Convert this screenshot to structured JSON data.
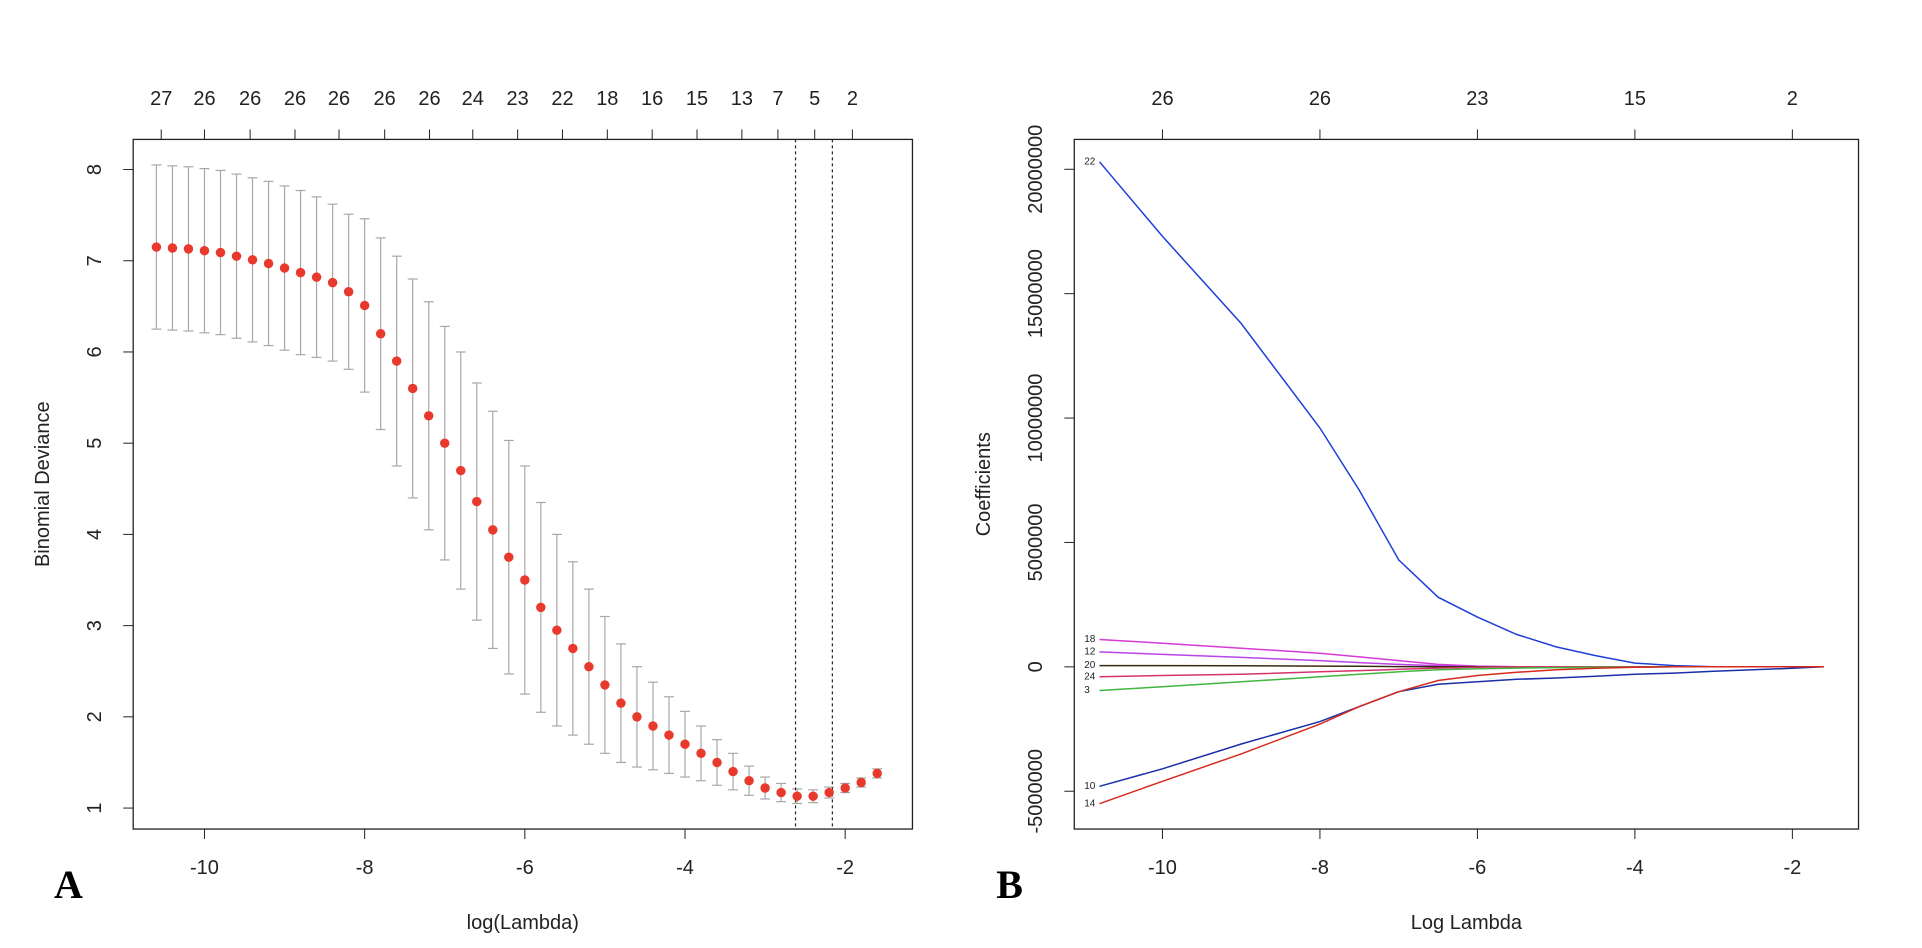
{
  "chart_data": [
    {
      "type": "errorbar",
      "panel_label": "A",
      "x_label": "log(Lambda)",
      "y_label": "Binomial Deviance",
      "x": [
        -10.6,
        -10.4,
        -10.2,
        -10.0,
        -9.8,
        -9.6,
        -9.4,
        -9.2,
        -9.0,
        -8.8,
        -8.6,
        -8.4,
        -8.2,
        -8.0,
        -7.8,
        -7.6,
        -7.4,
        -7.2,
        -7.0,
        -6.8,
        -6.6,
        -6.4,
        -6.2,
        -6.0,
        -5.8,
        -5.6,
        -5.4,
        -5.2,
        -5.0,
        -4.8,
        -4.6,
        -4.4,
        -4.2,
        -4.0,
        -3.8,
        -3.6,
        -3.4,
        -3.2,
        -3.0,
        -2.8,
        -2.6,
        -2.4,
        -2.2,
        -2.0,
        -1.8,
        -1.6
      ],
      "values": [
        7.15,
        7.14,
        7.13,
        7.11,
        7.09,
        7.05,
        7.01,
        6.97,
        6.92,
        6.87,
        6.82,
        6.76,
        6.66,
        6.51,
        6.2,
        5.9,
        5.6,
        5.3,
        5.0,
        4.7,
        4.36,
        4.05,
        3.75,
        3.5,
        3.2,
        2.95,
        2.75,
        2.55,
        2.35,
        2.15,
        2.0,
        1.9,
        1.8,
        1.7,
        1.6,
        1.5,
        1.4,
        1.3,
        1.22,
        1.17,
        1.13,
        1.13,
        1.17,
        1.22,
        1.28,
        1.38
      ],
      "errors": [
        0.9,
        0.9,
        0.9,
        0.9,
        0.9,
        0.9,
        0.9,
        0.9,
        0.9,
        0.9,
        0.88,
        0.86,
        0.85,
        0.95,
        1.05,
        1.15,
        1.2,
        1.25,
        1.28,
        1.3,
        1.3,
        1.3,
        1.28,
        1.25,
        1.15,
        1.05,
        0.95,
        0.85,
        0.75,
        0.65,
        0.55,
        0.48,
        0.42,
        0.36,
        0.3,
        0.25,
        0.2,
        0.16,
        0.12,
        0.1,
        0.08,
        0.07,
        0.06,
        0.05,
        0.05,
        0.05
      ],
      "color": "#e8392c",
      "error_color": "#a8a8a8",
      "vlines": [
        -2.62,
        -2.16
      ],
      "xlim": [
        -10.89,
        -1.16
      ],
      "xticks": [
        -10,
        -8,
        -6,
        -4,
        -2
      ],
      "ylim": [
        0.77,
        8.33
      ],
      "yticks": [
        1,
        2,
        3,
        4,
        5,
        6,
        7,
        8
      ],
      "top_ticks": [
        {
          "value": -10.54,
          "label": "27"
        },
        {
          "value": -10.0,
          "label": "26"
        },
        {
          "value": -9.43,
          "label": "26"
        },
        {
          "value": -8.87,
          "label": "26"
        },
        {
          "value": -8.32,
          "label": "26"
        },
        {
          "value": -7.75,
          "label": "26"
        },
        {
          "value": -7.19,
          "label": "26"
        },
        {
          "value": -6.65,
          "label": "24"
        },
        {
          "value": -6.09,
          "label": "23"
        },
        {
          "value": -5.53,
          "label": "22"
        },
        {
          "value": -4.97,
          "label": "18"
        },
        {
          "value": -4.41,
          "label": "16"
        },
        {
          "value": -3.85,
          "label": "15"
        },
        {
          "value": -3.29,
          "label": "13"
        },
        {
          "value": -2.84,
          "label": "7"
        },
        {
          "value": -2.38,
          "label": "5"
        },
        {
          "value": -1.91,
          "label": "2"
        }
      ]
    },
    {
      "type": "line",
      "panel_label": "B",
      "x_label": "Log Lambda",
      "y_label": "Coefficients",
      "x": [
        -10.8,
        -10,
        -9,
        -8,
        -7.5,
        -7,
        -6.5,
        -6,
        -5.5,
        -5,
        -4.5,
        -4,
        -3.5,
        -3,
        -2.5,
        -2,
        -1.6
      ],
      "series": [
        {
          "name": "22",
          "color": "#1f3fd8",
          "values": [
            20300000,
            17300000,
            13800000,
            9600000,
            7100000,
            4300000,
            2800000,
            2000000,
            1300000,
            800000,
            450000,
            150000,
            50000,
            0,
            0,
            0,
            0
          ]
        },
        {
          "name": "18",
          "color": "#d63ad6",
          "values": [
            1100000,
            950000,
            750000,
            550000,
            400000,
            250000,
            100000,
            30000,
            0,
            0,
            0,
            0,
            0,
            0,
            0,
            0,
            0
          ]
        },
        {
          "name": "12",
          "color": "#b845e6",
          "values": [
            600000,
            500000,
            380000,
            250000,
            170000,
            100000,
            40000,
            10000,
            0,
            0,
            0,
            0,
            0,
            0,
            0,
            0,
            0
          ]
        },
        {
          "name": "20",
          "color": "#3a2a10",
          "values": [
            50000,
            50000,
            40000,
            30000,
            20000,
            10000,
            0,
            0,
            0,
            0,
            0,
            0,
            0,
            0,
            0,
            0,
            0
          ]
        },
        {
          "name": "24",
          "color": "#d6336c",
          "values": [
            -400000,
            -350000,
            -300000,
            -200000,
            -150000,
            -100000,
            -50000,
            -20000,
            0,
            0,
            0,
            0,
            0,
            0,
            0,
            0,
            0
          ]
        },
        {
          "name": "3",
          "color": "#3fb83f",
          "values": [
            -950000,
            -800000,
            -600000,
            -400000,
            -300000,
            -200000,
            -120000,
            -80000,
            -50000,
            -30000,
            -20000,
            -10000,
            0,
            0,
            0,
            0,
            0
          ]
        },
        {
          "name": "10",
          "color": "#1b2fa8",
          "values": [
            -4800000,
            -4100000,
            -3100000,
            -2200000,
            -1600000,
            -1000000,
            -700000,
            -600000,
            -500000,
            -450000,
            -380000,
            -300000,
            -250000,
            -180000,
            -120000,
            -60000,
            0
          ]
        },
        {
          "name": "14",
          "color": "#d62a1e",
          "values": [
            -5500000,
            -4600000,
            -3500000,
            -2300000,
            -1600000,
            -1000000,
            -550000,
            -350000,
            -220000,
            -120000,
            -60000,
            -20000,
            0,
            0,
            0,
            0,
            0
          ]
        }
      ],
      "xlim": [
        -11.12,
        -1.16
      ],
      "xticks": [
        -10,
        -8,
        -6,
        -4,
        -2
      ],
      "ylim": [
        -6520000,
        21200000
      ],
      "yticks": [
        -5000000,
        0,
        5000000,
        10000000,
        15000000,
        20000000
      ],
      "top_ticks": [
        {
          "value": -10,
          "label": "26"
        },
        {
          "value": -8,
          "label": "26"
        },
        {
          "value": -6,
          "label": "23"
        },
        {
          "value": -4,
          "label": "15"
        },
        {
          "value": -2,
          "label": "2"
        }
      ]
    }
  ]
}
